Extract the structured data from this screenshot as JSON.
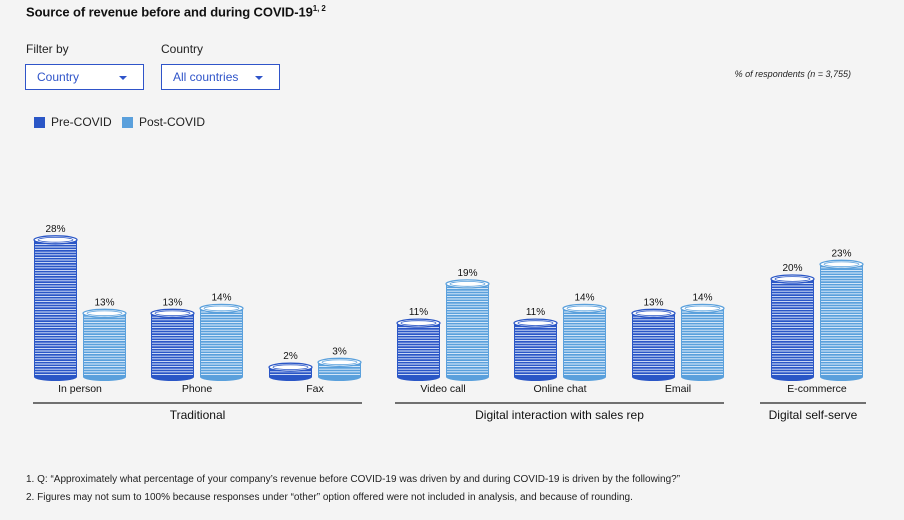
{
  "title": "Source of revenue before and during COVID-19",
  "title_sup": "1, 2",
  "filters": {
    "filter_by_label": "Filter by",
    "filter_by_value": "Country",
    "country_label": "Country",
    "country_value": "All countries"
  },
  "respondents_note": "% of respondents (n = 3,755)",
  "colors": {
    "pre": "#2a56c6",
    "post": "#5aa0dc",
    "pre_stripe": "#dfe8fb",
    "post_stripe": "#e3f0fb"
  },
  "chart_data": {
    "type": "bar",
    "categories": [
      "In person",
      "Phone",
      "Fax",
      "Video call",
      "Online chat",
      "Email",
      "E-commerce"
    ],
    "series": [
      {
        "name": "Pre-COVID",
        "values": [
          28,
          13,
          2,
          11,
          11,
          13,
          20
        ]
      },
      {
        "name": "Post-COVID",
        "values": [
          13,
          14,
          3,
          19,
          14,
          14,
          23
        ]
      }
    ],
    "value_suffix": "%",
    "groups": [
      {
        "label": "Traditional",
        "categories": [
          "In person",
          "Phone",
          "Fax"
        ]
      },
      {
        "label": "Digital interaction with sales rep",
        "categories": [
          "Video call",
          "Online chat",
          "Email"
        ]
      },
      {
        "label": "Digital self-serve",
        "categories": [
          "E-commerce"
        ]
      }
    ],
    "legend": "top-left",
    "grid": false,
    "ylim": [
      0,
      28
    ]
  },
  "footnotes": [
    "1. Q: “Approximately what percentage of your company’s revenue before COVID-19 was driven by and during COVID-19 is driven by the following?”",
    "2. Figures may not sum to 100% because responses under “other” option offered were not included in analysis, and because of rounding."
  ]
}
